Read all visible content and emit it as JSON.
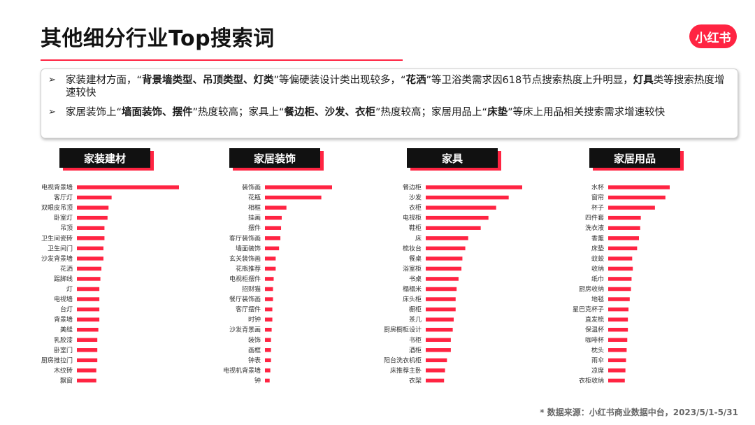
{
  "header": {
    "title": "其他细分行业Top搜索词",
    "logo_text": "小红书"
  },
  "summary": {
    "bullet_symbol": "➢",
    "bullet1": [
      {
        "t": "家装建材方面，“",
        "b": false
      },
      {
        "t": "背景墙类型、吊顶类型、灯类",
        "b": true
      },
      {
        "t": "”等偏硬装设计类出现较多，“",
        "b": false
      },
      {
        "t": "花洒",
        "b": true
      },
      {
        "t": "”等卫浴类需求因618节点搜索热度上升明显，",
        "b": false
      },
      {
        "t": "灯具",
        "b": true
      },
      {
        "t": "类等搜索热度增速较快",
        "b": false
      }
    ],
    "bullet2": [
      {
        "t": "家居装饰上“",
        "b": false
      },
      {
        "t": "墙面装饰、摆件",
        "b": true
      },
      {
        "t": "”热度较高；家具上“",
        "b": false
      },
      {
        "t": "餐边柜、沙发、衣柜",
        "b": true
      },
      {
        "t": "”热度较高；家居用品上“",
        "b": false
      },
      {
        "t": "床垫",
        "b": true
      },
      {
        "t": "”等床上用品相关搜索需求增速较快",
        "b": false
      }
    ]
  },
  "colors": {
    "accent": "#ff2442",
    "bar": "#ff2442",
    "label_bg": "#111111"
  },
  "chart_data": [
    {
      "type": "bar",
      "orientation": "horizontal",
      "title": "家装建材",
      "categories": [
        "电视背景墙",
        "客厅灯",
        "双眼皮吊顶",
        "卧室灯",
        "吊顶",
        "卫生间瓷砖",
        "卫生间门",
        "沙发背景墙",
        "花洒",
        "踢脚线",
        "灯",
        "电视墙",
        "台灯",
        "背景墙",
        "美缝",
        "乳胶漆",
        "卧室门",
        "厨房推拉门",
        "木纹砖",
        "飘窗"
      ],
      "values": [
        100,
        34,
        31,
        30,
        27,
        27,
        26,
        26,
        24,
        23,
        22,
        22,
        22,
        22,
        21,
        20,
        20,
        20,
        19,
        19
      ]
    },
    {
      "type": "bar",
      "orientation": "horizontal",
      "title": "家居装饰",
      "categories": [
        "装饰画",
        "花瓶",
        "相框",
        "挂画",
        "摆件",
        "客厅装饰画",
        "墙面装饰",
        "玄关装饰画",
        "花瓶推荐",
        "电视柜摆件",
        "招财猫",
        "餐厅装饰画",
        "客厅摆件",
        "时钟",
        "沙发背景画",
        "装饰",
        "画框",
        "钟表",
        "电视机背景墙",
        "钟"
      ],
      "values": [
        100,
        84,
        32,
        25,
        24,
        23,
        21,
        16,
        16,
        13,
        12,
        12,
        11,
        11,
        10,
        9,
        9,
        9,
        8,
        7
      ]
    },
    {
      "type": "bar",
      "orientation": "horizontal",
      "title": "家具",
      "categories": [
        "餐边柜",
        "沙发",
        "衣柜",
        "电视柜",
        "鞋柜",
        "床",
        "梳妆台",
        "餐桌",
        "浴室柜",
        "书桌",
        "榻榻米",
        "床头柜",
        "橱柜",
        "茶几",
        "厨房橱柜设计",
        "书柜",
        "酒柜",
        "阳台洗衣机柜",
        "床推荐主卧",
        "衣架"
      ],
      "values": [
        100,
        86,
        73,
        65,
        57,
        44,
        41,
        38,
        37,
        34,
        32,
        31,
        31,
        29,
        28,
        26,
        26,
        22,
        20,
        19
      ]
    },
    {
      "type": "bar",
      "orientation": "horizontal",
      "title": "家居用品",
      "categories": [
        "水杯",
        "窗帘",
        "杯子",
        "四件套",
        "洗衣液",
        "香薰",
        "床垫",
        "蚊蛟",
        "收纳",
        "纸巾",
        "厨房收纳",
        "地毯",
        "星巴克杯子",
        "直发梳",
        "保温杯",
        "咖啡杯",
        "枕头",
        "雨伞",
        "凉席",
        "衣柜收纳"
      ],
      "values": [
        100,
        93,
        76,
        53,
        52,
        50,
        47,
        39,
        40,
        38,
        37,
        35,
        33,
        32,
        32,
        31,
        30,
        29,
        28,
        27
      ]
    }
  ],
  "footer": {
    "source": "* 数据来源：小红书商业数据中台，2023/5/1-5/31"
  }
}
